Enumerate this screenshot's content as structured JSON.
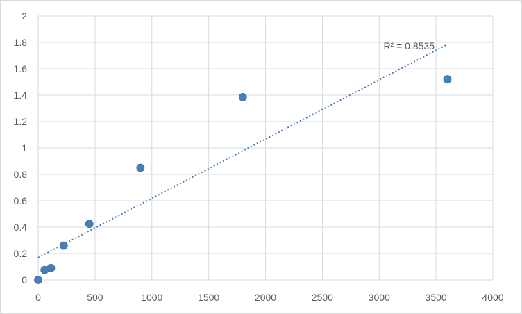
{
  "chart_data": {
    "type": "scatter",
    "title": "",
    "xlabel": "",
    "ylabel": "",
    "xlim": [
      0,
      4000
    ],
    "ylim": [
      0,
      2
    ],
    "x_ticks": [
      0,
      500,
      1000,
      1500,
      2000,
      2500,
      3000,
      3500,
      4000
    ],
    "y_ticks": [
      0,
      0.2,
      0.4,
      0.6,
      0.8,
      1,
      1.2,
      1.4,
      1.6,
      1.8,
      2
    ],
    "x_tick_labels": [
      "0",
      "500",
      "1000",
      "1500",
      "2000",
      "2500",
      "3000",
      "3500",
      "4000"
    ],
    "y_tick_labels": [
      "0",
      "0.2",
      "0.4",
      "0.6",
      "0.8",
      "1",
      "1.2",
      "1.4",
      "1.6",
      "1.8",
      "2"
    ],
    "grid": true,
    "legend": "none",
    "series": [
      {
        "points": [
          {
            "x": 0,
            "y": 0
          },
          {
            "x": 56.25,
            "y": 0.075
          },
          {
            "x": 112.5,
            "y": 0.09
          },
          {
            "x": 225,
            "y": 0.26
          },
          {
            "x": 450,
            "y": 0.425
          },
          {
            "x": 900,
            "y": 0.85
          },
          {
            "x": 1800,
            "y": 1.385
          },
          {
            "x": 3600,
            "y": 1.52
          }
        ],
        "color": "#4a7ebb"
      }
    ],
    "trendline": {
      "type": "linear",
      "x_range": [
        0,
        3600
      ],
      "y_at_start": 0.17,
      "y_at_end": 1.785,
      "style": "dotted",
      "color": "#4a7ebb",
      "label": "R² = 0.8535"
    }
  },
  "colors": {
    "grid": "#d9d9d9",
    "axis_text": "#595959"
  }
}
